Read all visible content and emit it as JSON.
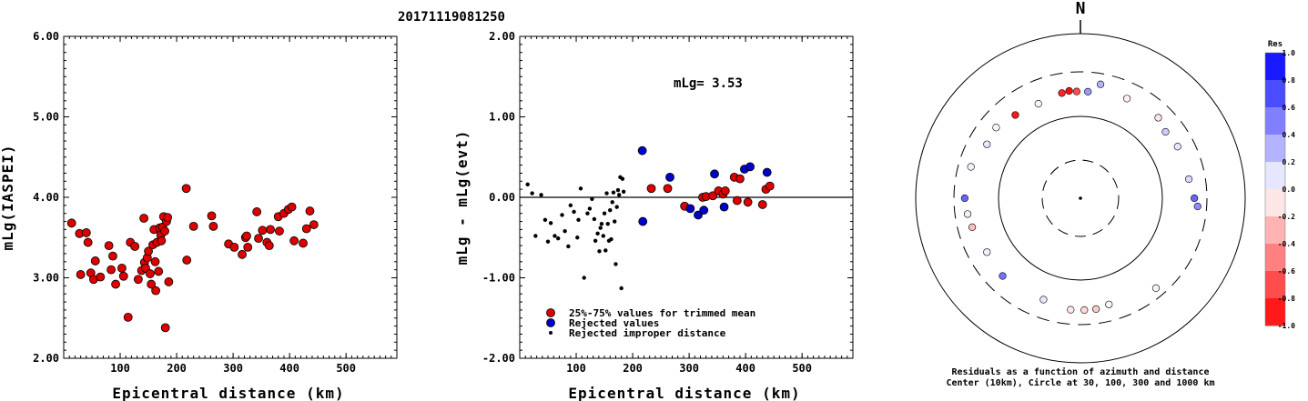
{
  "title": "20171119081250",
  "chart_data": [
    {
      "type": "scatter",
      "xlabel": "Epicentral distance (km)",
      "ylabel": "mLg(IASPEI)",
      "xlim": [
        0,
        590
      ],
      "ylim": [
        2.0,
        6.0
      ],
      "xticks": [
        "100",
        "200",
        "300",
        "400",
        "500"
      ],
      "yticks": [
        "2.00",
        "3.00",
        "4.00",
        "5.00",
        "6.00"
      ],
      "series": [
        {
          "color": "#dd0000",
          "points": [
            [
              14,
              3.68
            ],
            [
              28,
              3.55
            ],
            [
              30,
              3.04
            ],
            [
              40,
              3.56
            ],
            [
              43,
              3.44
            ],
            [
              48,
              3.06
            ],
            [
              53,
              2.98
            ],
            [
              56,
              3.21
            ],
            [
              65,
              3.01
            ],
            [
              80,
              3.4
            ],
            [
              84,
              3.1
            ],
            [
              87,
              3.27
            ],
            [
              92,
              2.92
            ],
            [
              103,
              3.12
            ],
            [
              106,
              3.02
            ],
            [
              114,
              2.51
            ],
            [
              118,
              3.44
            ],
            [
              126,
              3.39
            ],
            [
              132,
              2.98
            ],
            [
              138,
              3.09
            ],
            [
              142,
              3.74
            ],
            [
              143,
              3.19
            ],
            [
              145,
              3.12
            ],
            [
              148,
              3.25
            ],
            [
              150,
              3.33
            ],
            [
              153,
              3.05
            ],
            [
              155,
              2.92
            ],
            [
              158,
              3.41
            ],
            [
              160,
              3.6
            ],
            [
              162,
              3.2
            ],
            [
              163,
              2.84
            ],
            [
              165,
              3.44
            ],
            [
              168,
              3.08
            ],
            [
              170,
              3.62
            ],
            [
              172,
              3.53
            ],
            [
              173,
              3.46
            ],
            [
              175,
              3.63
            ],
            [
              177,
              3.76
            ],
            [
              179,
              3.58
            ],
            [
              180,
              2.38
            ],
            [
              182,
              3.7
            ],
            [
              184,
              3.75
            ],
            [
              186,
              2.95
            ],
            [
              217,
              4.11
            ],
            [
              218,
              3.22
            ],
            [
              230,
              3.64
            ],
            [
              262,
              3.77
            ],
            [
              265,
              3.64
            ],
            [
              292,
              3.42
            ],
            [
              302,
              3.38
            ],
            [
              316,
              3.29
            ],
            [
              322,
              3.5
            ],
            [
              324,
              3.52
            ],
            [
              326,
              3.38
            ],
            [
              342,
              3.82
            ],
            [
              345,
              3.49
            ],
            [
              352,
              3.59
            ],
            [
              360,
              3.44
            ],
            [
              364,
              3.4
            ],
            [
              366,
              3.6
            ],
            [
              380,
              3.76
            ],
            [
              382,
              3.58
            ],
            [
              390,
              3.8
            ],
            [
              398,
              3.85
            ],
            [
              404,
              3.88
            ],
            [
              408,
              3.46
            ],
            [
              424,
              3.43
            ],
            [
              430,
              3.61
            ],
            [
              436,
              3.83
            ],
            [
              443,
              3.66
            ]
          ]
        }
      ]
    },
    {
      "type": "scatter",
      "xlabel": "Epicentral distance (km)",
      "ylabel": "mLg - mLg(evt)",
      "xlim": [
        0,
        590
      ],
      "ylim": [
        -2.0,
        2.0
      ],
      "xticks": [
        "100",
        "200",
        "300",
        "400",
        "500"
      ],
      "yticks": [
        "-2.00",
        "-1.00",
        "0.00",
        "1.00",
        "2.00"
      ],
      "reference_line": 0.0,
      "annotation": "mLg= 3.53",
      "legend": [
        "25%-75% values for trimmed mean",
        "Rejected values",
        "Rejected improper distance"
      ],
      "series": [
        {
          "name": "25%-75% values for trimmed mean",
          "color": "#dd0000",
          "points": [
            [
              233,
              0.11
            ],
            [
              262,
              0.11
            ],
            [
              292,
              -0.11
            ],
            [
              324,
              0.0
            ],
            [
              330,
              0.01
            ],
            [
              342,
              0.02
            ],
            [
              352,
              0.08
            ],
            [
              360,
              0.04
            ],
            [
              364,
              0.08
            ],
            [
              380,
              0.25
            ],
            [
              385,
              -0.04
            ],
            [
              390,
              0.23
            ],
            [
              404,
              -0.06
            ],
            [
              430,
              -0.09
            ],
            [
              436,
              0.1
            ],
            [
              443,
              0.14
            ]
          ]
        },
        {
          "name": "Rejected values",
          "color": "#0000cc",
          "points": [
            [
              217,
              0.58
            ],
            [
              218,
              -0.3
            ],
            [
              266,
              0.25
            ],
            [
              302,
              -0.14
            ],
            [
              316,
              -0.22
            ],
            [
              326,
              -0.16
            ],
            [
              345,
              0.29
            ],
            [
              362,
              -0.12
            ],
            [
              398,
              0.35
            ],
            [
              408,
              0.38
            ],
            [
              438,
              0.31
            ]
          ]
        },
        {
          "name": "Rejected improper distance",
          "color": "#000000",
          "points": [
            [
              14,
              0.16
            ],
            [
              22,
              0.05
            ],
            [
              28,
              -0.48
            ],
            [
              38,
              0.03
            ],
            [
              45,
              -0.28
            ],
            [
              50,
              -0.55
            ],
            [
              55,
              -0.32
            ],
            [
              62,
              -0.48
            ],
            [
              68,
              -0.51
            ],
            [
              75,
              -0.22
            ],
            [
              80,
              -0.42
            ],
            [
              86,
              -0.61
            ],
            [
              90,
              -0.1
            ],
            [
              96,
              -0.18
            ],
            [
              102,
              -0.5
            ],
            [
              104,
              -0.28
            ],
            [
              108,
              0.11
            ],
            [
              114,
              -1.0
            ],
            [
              120,
              -0.2
            ],
            [
              124,
              -0.14
            ],
            [
              128,
              -0.02
            ],
            [
              132,
              -0.27
            ],
            [
              134,
              -0.54
            ],
            [
              138,
              -0.45
            ],
            [
              141,
              -0.67
            ],
            [
              143,
              -0.38
            ],
            [
              145,
              -0.33
            ],
            [
              148,
              -0.48
            ],
            [
              150,
              -0.2
            ],
            [
              152,
              -0.66
            ],
            [
              154,
              0.05
            ],
            [
              156,
              -0.33
            ],
            [
              158,
              -0.54
            ],
            [
              160,
              -0.16
            ],
            [
              162,
              -0.52
            ],
            [
              164,
              -0.06
            ],
            [
              166,
              0.06
            ],
            [
              168,
              -0.3
            ],
            [
              170,
              -0.83
            ],
            [
              172,
              -0.12
            ],
            [
              174,
              0.09
            ],
            [
              176,
              0.03
            ],
            [
              178,
              0.25
            ],
            [
              180,
              -1.13
            ],
            [
              182,
              0.23
            ],
            [
              184,
              0.07
            ]
          ]
        }
      ]
    },
    {
      "type": "scatter",
      "subtype": "polar",
      "north_label": "N",
      "caption_line1": "Residuals as a function of azimuth and distance",
      "caption_line2": "Center (10km), Circle at 30, 100, 300 and 1000 km",
      "points": [
        {
          "az": 10,
          "dist": 230,
          "res": 0.3
        },
        {
          "az": 25,
          "dist": 200,
          "res": -0.05
        },
        {
          "az": 44,
          "dist": 210,
          "res": -0.1
        },
        {
          "az": 52,
          "dist": 190,
          "res": 0.2
        },
        {
          "az": 62,
          "dist": 200,
          "res": 0.1
        },
        {
          "az": 80,
          "dist": 200,
          "res": 0.15
        },
        {
          "az": 90,
          "dist": 220,
          "res": 0.6
        },
        {
          "az": 94,
          "dist": 240,
          "res": 0.45
        },
        {
          "az": 140,
          "dist": 240,
          "res": -0.05
        },
        {
          "az": 165,
          "dist": 200,
          "res": -0.05
        },
        {
          "az": 172,
          "dist": 210,
          "res": -0.2
        },
        {
          "az": 178,
          "dist": 210,
          "res": -0.15
        },
        {
          "az": 185,
          "dist": 210,
          "res": -0.1
        },
        {
          "az": 200,
          "dist": 190,
          "res": 0.1
        },
        {
          "az": 225,
          "dist": 200,
          "res": 0.55
        },
        {
          "az": 240,
          "dist": 190,
          "res": 0.05
        },
        {
          "az": 255,
          "dist": 210,
          "res": -0.25
        },
        {
          "az": 262,
          "dist": 220,
          "res": 0.05
        },
        {
          "az": 270,
          "dist": 230,
          "res": 0.6
        },
        {
          "az": 286,
          "dist": 220,
          "res": 0.05
        },
        {
          "az": 300,
          "dist": 190,
          "res": 0.1
        },
        {
          "az": 310,
          "dist": 200,
          "res": -0.05
        },
        {
          "az": 322,
          "dist": 180,
          "res": -0.9
        },
        {
          "az": 336,
          "dist": 170,
          "res": 0.05
        },
        {
          "az": 350,
          "dist": 185,
          "res": -0.85
        },
        {
          "az": 354,
          "dist": 190,
          "res": -0.95
        },
        {
          "az": 358,
          "dist": 185,
          "res": -0.7
        },
        {
          "az": 4,
          "dist": 185,
          "res": 0.4
        }
      ],
      "colorbar": {
        "title": "Res",
        "labels": [
          "1.0",
          "0.8",
          "0.6",
          "0.4",
          "0.2",
          "0.0",
          "-0.2",
          "-0.4",
          "-0.6",
          "-0.8",
          "-1.0"
        ]
      }
    }
  ]
}
